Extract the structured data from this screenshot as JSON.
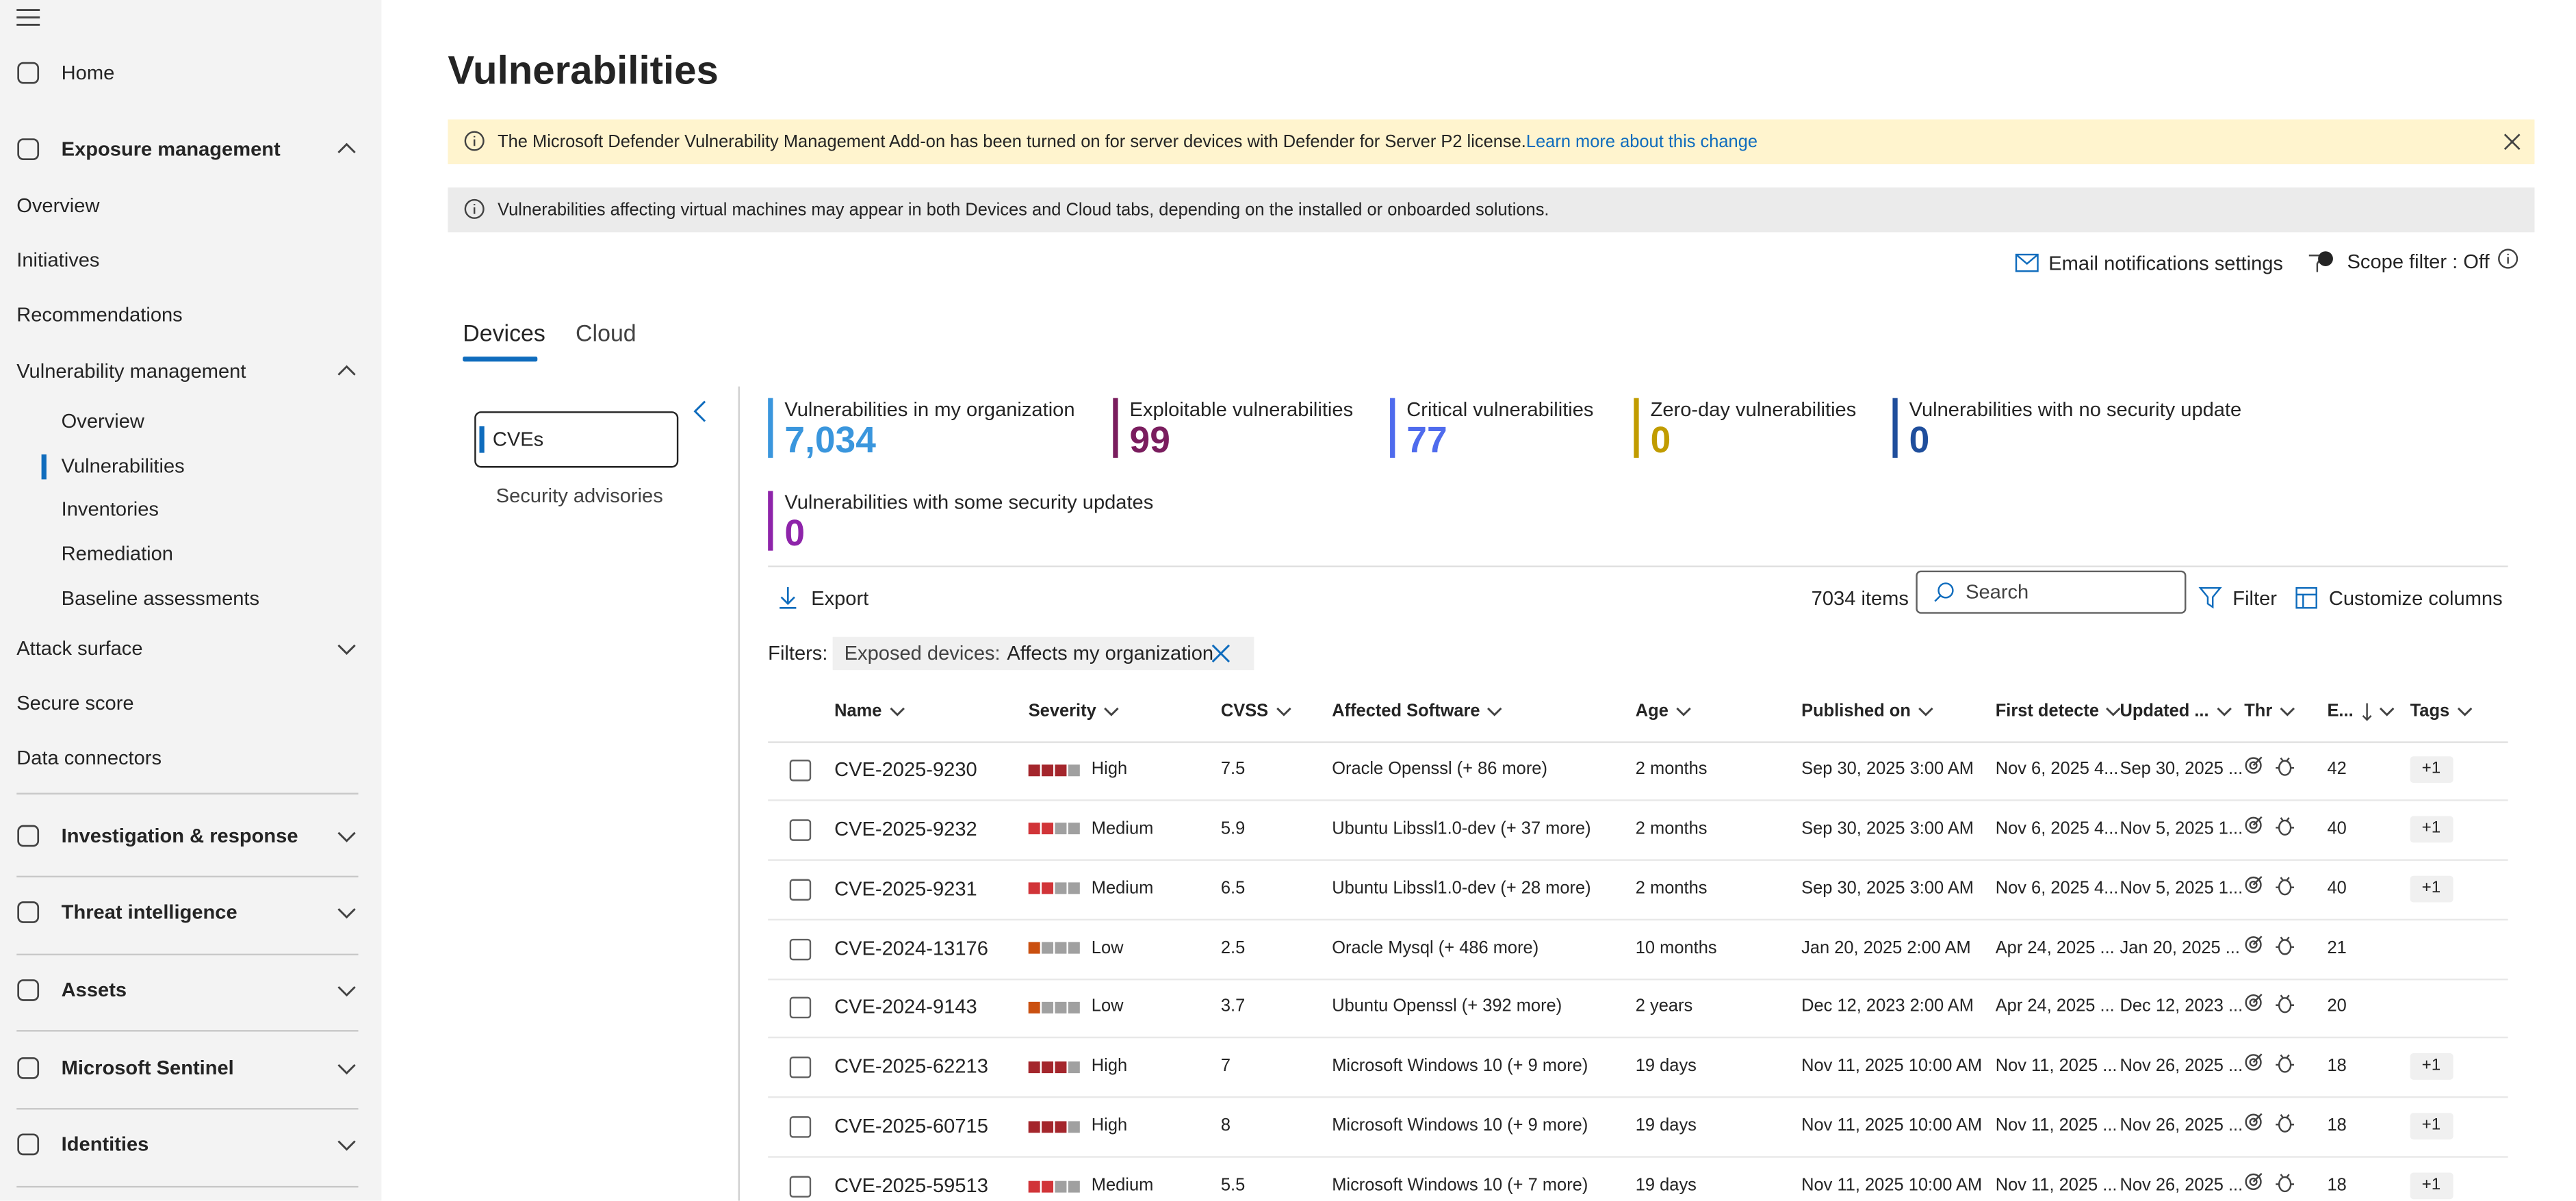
{
  "sidebar": [
    "Home",
    "Exposure management",
    "Overview",
    "Initiatives",
    "Recommendations",
    "Vulnerability management",
    "Overview",
    "Vulnerabilities",
    "Inventories",
    "Remediation",
    "Baseline assessments",
    "Attack surface",
    "Secure score",
    "Data connectors",
    "Investigation & response",
    "Threat intelligence",
    "Assets",
    "Microsoft Sentinel",
    "Identities"
  ],
  "page": {
    "title": "Vulnerabilities",
    "banner": {
      "text": "The Microsoft Defender Vulnerability Management Add-on has been turned on for server devices with Defender for Server P2 license.",
      "link": "Learn more about this change"
    },
    "info": "Vulnerabilities affecting virtual machines may appear in both Devices and Cloud tabs, depending on the installed or onboarded solutions.",
    "email": "Email notifications settings",
    "scope": "Scope filter : Off",
    "tabs": [
      "Devices",
      "Cloud"
    ],
    "nav": [
      "CVEs",
      "Security advisories"
    ],
    "cards": [
      {
        "label": "Vulnerabilities in my organization",
        "value": "7,034"
      },
      {
        "label": "Exploitable vulnerabilities",
        "value": "99"
      },
      {
        "label": "Critical vulnerabilities",
        "value": "77"
      },
      {
        "label": "Zero-day vulnerabilities",
        "value": "0"
      },
      {
        "label": "Vulnerabilities with no security update",
        "value": "0"
      },
      {
        "label": "Vulnerabilities with some security updates",
        "value": "0"
      }
    ],
    "toolbar": {
      "export": "Export",
      "count": "7034 items",
      "search": "Search",
      "filter": "Filter",
      "customize": "Customize columns"
    },
    "filters": {
      "label": "Filters:",
      "chip_key": "Exposed devices:",
      "chip_value": "Affects my organization"
    }
  },
  "table": {
    "columns": [
      "Name",
      "Severity",
      "CVSS",
      "Affected Software",
      "Age",
      "Published on",
      "First detecte",
      "Updated ...",
      "Thr",
      "E...",
      "Tags"
    ],
    "rows": [
      {
        "name": "CVE-2025-9230",
        "severity": "High",
        "cvss": 7.5,
        "software": "Oracle Openssl (+ 86 more)",
        "age": "2 months",
        "published": "Sep 30, 2025 3:00 AM",
        "first_detected": "Nov 6, 2025 4...",
        "updated": "Sep 30, 2025 ...",
        "exposed": 42,
        "tags": "+1"
      },
      {
        "name": "CVE-2025-9232",
        "severity": "Medium",
        "cvss": 5.9,
        "software": "Ubuntu Libssl1.0-dev (+ 37 more)",
        "age": "2 months",
        "published": "Sep 30, 2025 3:00 AM",
        "first_detected": "Nov 6, 2025 4...",
        "updated": "Nov 5, 2025 1...",
        "exposed": 40,
        "tags": "+1"
      },
      {
        "name": "CVE-2025-9231",
        "severity": "Medium",
        "cvss": 6.5,
        "software": "Ubuntu Libssl1.0-dev (+ 28 more)",
        "age": "2 months",
        "published": "Sep 30, 2025 3:00 AM",
        "first_detected": "Nov 6, 2025 4...",
        "updated": "Nov 5, 2025 1...",
        "exposed": 40,
        "tags": "+1"
      },
      {
        "name": "CVE-2024-13176",
        "severity": "Low",
        "cvss": 2.5,
        "software": "Oracle Mysql (+ 486 more)",
        "age": "10 months",
        "published": "Jan 20, 2025 2:00 AM",
        "first_detected": "Apr 24, 2025 ...",
        "updated": "Jan 20, 2025 ...",
        "exposed": 21
      },
      {
        "name": "CVE-2024-9143",
        "severity": "Low",
        "cvss": 3.7,
        "software": "Ubuntu Openssl (+ 392 more)",
        "age": "2 years",
        "published": "Dec 12, 2023 2:00 AM",
        "first_detected": "Apr 24, 2025 ...",
        "updated": "Dec 12, 2023 ...",
        "exposed": 20
      },
      {
        "name": "CVE-2025-62213",
        "severity": "High",
        "cvss": 7,
        "software": "Microsoft Windows 10 (+ 9 more)",
        "age": "19 days",
        "published": "Nov 11, 2025 10:00 AM",
        "first_detected": "Nov 11, 2025 ...",
        "updated": "Nov 26, 2025 ...",
        "exposed": 18,
        "tags": "+1"
      },
      {
        "name": "CVE-2025-60715",
        "severity": "High",
        "cvss": 8,
        "software": "Microsoft Windows 10 (+ 9 more)",
        "age": "19 days",
        "published": "Nov 11, 2025 10:00 AM",
        "first_detected": "Nov 11, 2025 ...",
        "updated": "Nov 26, 2025 ...",
        "exposed": 18,
        "tags": "+1"
      },
      {
        "name": "CVE-2025-59513",
        "severity": "Medium",
        "cvss": 5.5,
        "software": "Microsoft Windows 10 (+ 7 more)",
        "age": "19 days",
        "published": "Nov 11, 2025 10:00 AM",
        "first_detected": "Nov 11, 2025 ...",
        "updated": "Nov 26, 2025 ...",
        "exposed": 18,
        "tags": "+1"
      }
    ]
  }
}
